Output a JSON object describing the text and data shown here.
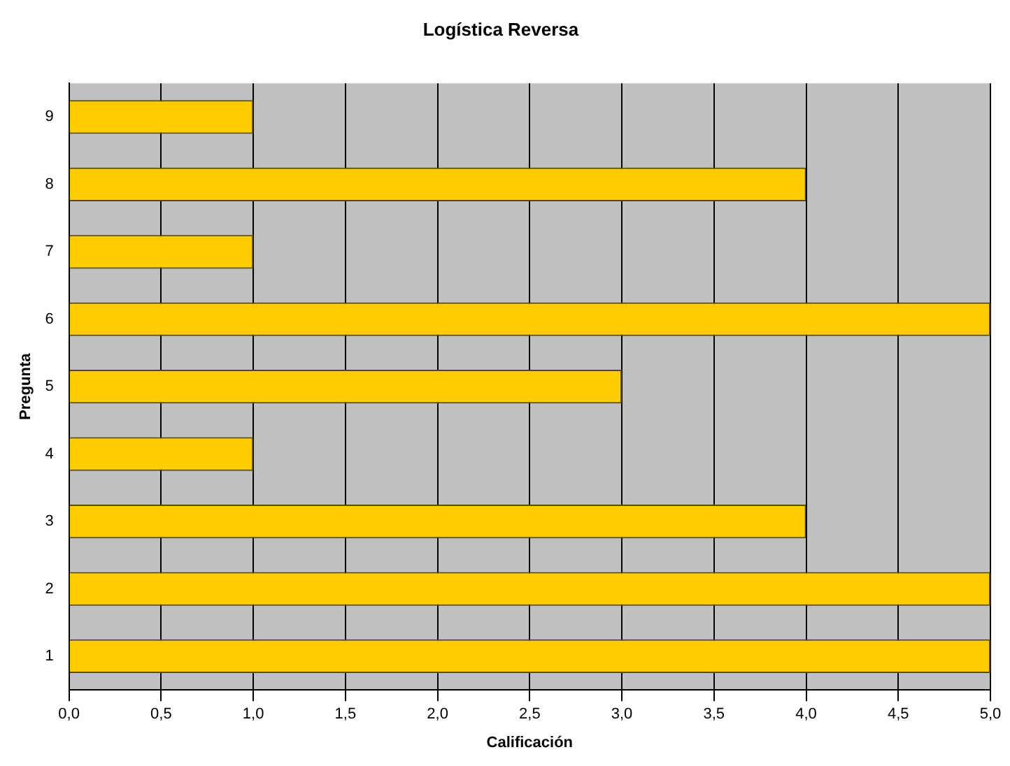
{
  "chart_data": {
    "type": "bar",
    "orientation": "horizontal",
    "title": "Logística Reversa",
    "xlabel": "Calificación",
    "ylabel": "Pregunta",
    "categories": [
      "9",
      "8",
      "7",
      "6",
      "5",
      "4",
      "3",
      "2",
      "1"
    ],
    "values": [
      1,
      4,
      1,
      5,
      3,
      1,
      4,
      5,
      5
    ],
    "color": "#ffcc00",
    "xlim": [
      0,
      5
    ],
    "xticks": [
      {
        "value": 0,
        "label": "0,0"
      },
      {
        "value": 0.5,
        "label": "0,5"
      },
      {
        "value": 1,
        "label": "1,0"
      },
      {
        "value": 1.5,
        "label": "1,5"
      },
      {
        "value": 2,
        "label": "2,0"
      },
      {
        "value": 2.5,
        "label": "2,5"
      },
      {
        "value": 3,
        "label": "3,0"
      },
      {
        "value": 3.5,
        "label": "3,5"
      },
      {
        "value": 4,
        "label": "4,0"
      },
      {
        "value": 4.5,
        "label": "4,5"
      },
      {
        "value": 5,
        "label": "5,0"
      }
    ],
    "grid": "x",
    "legend": false
  }
}
